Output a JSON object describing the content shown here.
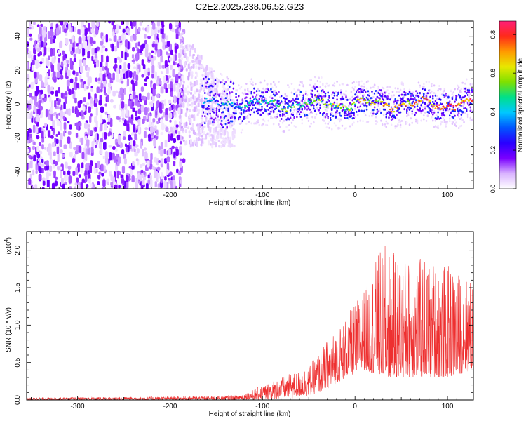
{
  "figure_title": "C2E2.2025.238.06.52.G23",
  "chart_data": [
    {
      "type": "heatmap",
      "xlabel": "Height of straight line (km)",
      "ylabel": "Frequency (Hz)",
      "xlim": [
        -355,
        128
      ],
      "ylim": [
        -50,
        49
      ],
      "x_ticks": [
        -300,
        -200,
        -100,
        0,
        100
      ],
      "y_ticks": [
        -40,
        -20,
        0,
        20,
        40
      ],
      "grid": false,
      "colorbar": {
        "label": "Normalized spectral amplitude",
        "range": [
          0.0,
          0.87
        ],
        "ticks": [
          0.0,
          0.2,
          0.4,
          0.6,
          0.8
        ],
        "colormap": [
          "#ffffff",
          "#d9b3ff",
          "#7a00ff",
          "#2a00ff",
          "#0055ff",
          "#00c8ff",
          "#00e08a",
          "#7fe000",
          "#e8e800",
          "#ff9a00",
          "#ff2a1a",
          "#ff1e78"
        ]
      },
      "regions": [
        {
          "x_from": -355,
          "x_to": -190,
          "band": "full",
          "amplitude": [
            0.1,
            0.18
          ]
        },
        {
          "x_from": -190,
          "x_to": -150,
          "band": [
            -25,
            45
          ],
          "amplitude": [
            0.05,
            0.12
          ]
        },
        {
          "x_from": -160,
          "x_to": -130,
          "band": [
            -8,
            15
          ],
          "amplitude": [
            0.2,
            0.4
          ]
        },
        {
          "x_from": -130,
          "x_to": 128,
          "band": [
            -10,
            10
          ],
          "amplitude": [
            0.3,
            0.85
          ]
        }
      ]
    },
    {
      "type": "area",
      "xlabel": "Height of straight line (km)",
      "ylabel": "SNR (10 * v/v)",
      "y_scale_label": "(x10",
      "y_scale_exp": "4",
      "y_scale_close": ")",
      "xlim": [
        -355,
        128
      ],
      "ylim": [
        0,
        2.25
      ],
      "x_ticks": [
        -300,
        -200,
        -100,
        0,
        100
      ],
      "y_ticks": [
        0.0,
        0.5,
        1.0,
        1.5,
        2.0
      ],
      "y_tick_labels": [
        "0.0",
        "0.5",
        "1.0",
        "1.5",
        "2.0"
      ],
      "grid": false,
      "color": "#ee3030",
      "envelope": [
        {
          "x": -355,
          "min": 0.0,
          "max": 0.03
        },
        {
          "x": -250,
          "min": 0.0,
          "max": 0.04
        },
        {
          "x": -150,
          "min": 0.0,
          "max": 0.05
        },
        {
          "x": -120,
          "min": 0.0,
          "max": 0.08
        },
        {
          "x": -100,
          "min": 0.0,
          "max": 0.2
        },
        {
          "x": -70,
          "min": 0.02,
          "max": 0.35
        },
        {
          "x": -50,
          "min": 0.05,
          "max": 0.45
        },
        {
          "x": -30,
          "min": 0.15,
          "max": 0.8
        },
        {
          "x": -10,
          "min": 0.3,
          "max": 1.1
        },
        {
          "x": 10,
          "min": 0.4,
          "max": 1.5
        },
        {
          "x": 30,
          "min": 0.3,
          "max": 2.1
        },
        {
          "x": 50,
          "min": 0.3,
          "max": 1.9
        },
        {
          "x": 80,
          "min": 0.3,
          "max": 1.9
        },
        {
          "x": 100,
          "min": 0.3,
          "max": 1.8
        },
        {
          "x": 128,
          "min": 0.4,
          "max": 1.6
        }
      ]
    }
  ]
}
